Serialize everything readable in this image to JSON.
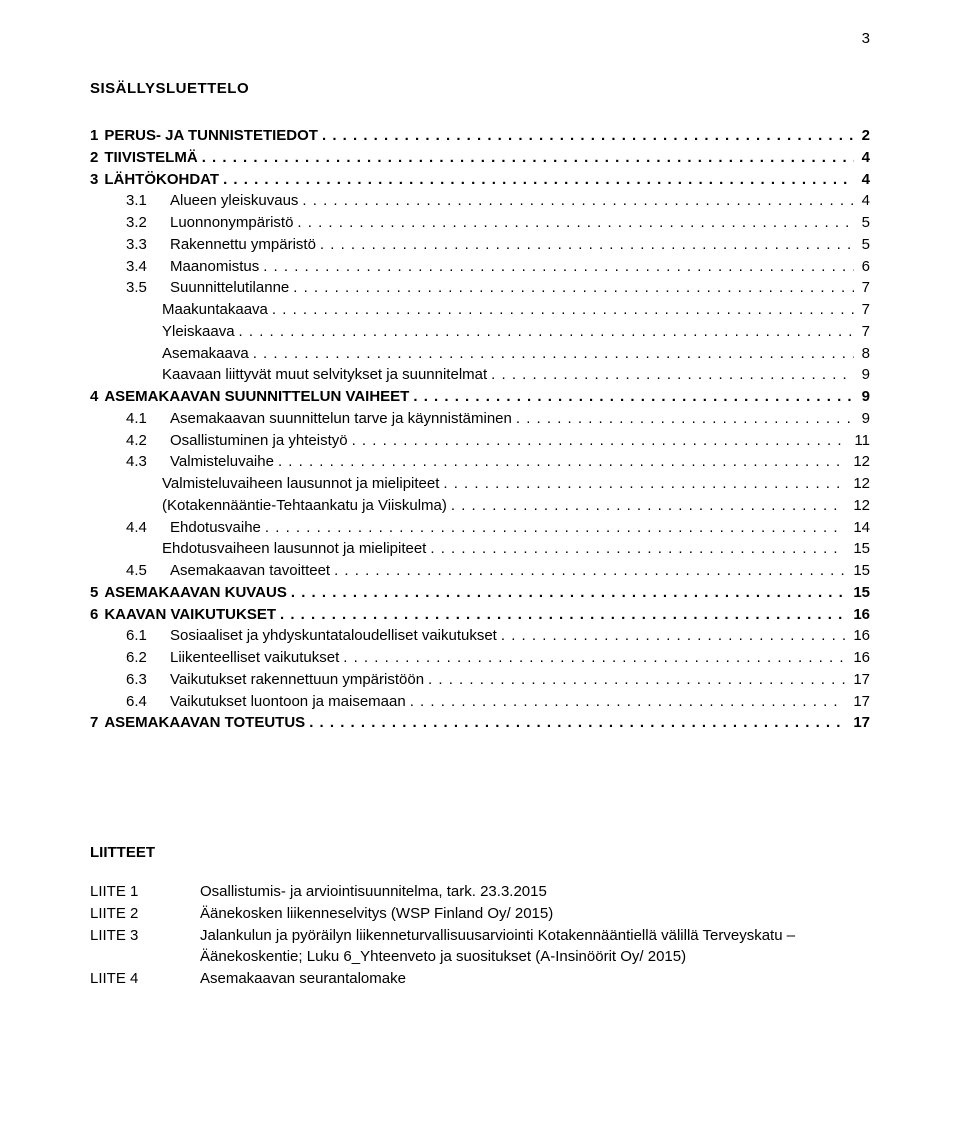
{
  "pageNumber": "3",
  "title": "SISÄLLYSLUETTELO",
  "toc": [
    {
      "level": 0,
      "num": "1",
      "label": "PERUS- JA TUNNISTETIEDOT",
      "page": "2"
    },
    {
      "level": 0,
      "num": "2",
      "label": "TIIVISTELMÄ",
      "page": "4"
    },
    {
      "level": 0,
      "num": "3",
      "label": "LÄHTÖKOHDAT",
      "page": "4"
    },
    {
      "level": 1,
      "num": "3.1",
      "label": "Alueen yleiskuvaus",
      "page": "4"
    },
    {
      "level": 1,
      "num": "3.2",
      "label": "Luonnonympäristö",
      "page": "5"
    },
    {
      "level": 1,
      "num": "3.3",
      "label": "Rakennettu ympäristö",
      "page": "5"
    },
    {
      "level": 1,
      "num": "3.4",
      "label": "Maanomistus",
      "page": "6"
    },
    {
      "level": 1,
      "num": "3.5",
      "label": "Suunnittelutilanne",
      "page": "7"
    },
    {
      "level": 2,
      "num": "",
      "label": "Maakuntakaava",
      "page": "7"
    },
    {
      "level": 2,
      "num": "",
      "label": "Yleiskaava",
      "page": "7"
    },
    {
      "level": 2,
      "num": "",
      "label": "Asemakaava",
      "page": "8"
    },
    {
      "level": 2,
      "num": "",
      "label": "Kaavaan liittyvät muut selvitykset ja suunnitelmat",
      "page": "9"
    },
    {
      "level": 0,
      "num": "4",
      "label": "ASEMAKAAVAN SUUNNITTELUN VAIHEET",
      "page": "9"
    },
    {
      "level": 1,
      "num": "4.1",
      "label": "Asemakaavan suunnittelun tarve ja käynnistäminen",
      "page": "9"
    },
    {
      "level": 1,
      "num": "4.2",
      "label": "Osallistuminen ja yhteistyö",
      "page": "11"
    },
    {
      "level": 1,
      "num": "4.3",
      "label": "Valmisteluvaihe",
      "page": "12"
    },
    {
      "level": 2,
      "num": "",
      "label": "Valmisteluvaiheen lausunnot ja mielipiteet",
      "page": "12"
    },
    {
      "level": 2,
      "num": "",
      "label": "(Kotakennääntie-Tehtaankatu ja Viiskulma)",
      "page": "12"
    },
    {
      "level": 1,
      "num": "4.4",
      "label": "Ehdotusvaihe",
      "page": "14"
    },
    {
      "level": 2,
      "num": "",
      "label": "Ehdotusvaiheen lausunnot ja mielipiteet",
      "page": "15"
    },
    {
      "level": 1,
      "num": "4.5",
      "label": "Asemakaavan tavoitteet",
      "page": "15"
    },
    {
      "level": 0,
      "num": "5",
      "label": "ASEMAKAAVAN KUVAUS",
      "page": "15"
    },
    {
      "level": 0,
      "num": "6",
      "label": "KAAVAN VAIKUTUKSET",
      "page": "16"
    },
    {
      "level": 1,
      "num": "6.1",
      "label": "Sosiaaliset ja yhdyskuntataloudelliset vaikutukset",
      "page": "16"
    },
    {
      "level": 1,
      "num": "6.2",
      "label": "Liikenteelliset vaikutukset",
      "page": "16"
    },
    {
      "level": 1,
      "num": "6.3",
      "label": "Vaikutukset rakennettuun ympäristöön",
      "page": "17"
    },
    {
      "level": 1,
      "num": "6.4",
      "label": "Vaikutukset luontoon ja maisemaan",
      "page": "17"
    },
    {
      "level": 0,
      "num": "7",
      "label": "ASEMAKAAVAN TOTEUTUS",
      "page": "17"
    }
  ],
  "appendixTitle": "LIITTEET",
  "appendix": [
    {
      "key": "LIITE 1",
      "val": "Osallistumis- ja arviointisuunnitelma, tark. 23.3.2015"
    },
    {
      "key": "LIITE 2",
      "val": "Äänekosken liikenneselvitys (WSP Finland Oy/ 2015)"
    },
    {
      "key": "LIITE 3",
      "val": "Jalankulun ja pyöräilyn liikenneturvallisuusarviointi Kotakennääntiellä välillä Terveyskatu – Äänekoskentie; Luku 6_Yhteenveto ja suositukset (A-Insinöörit Oy/ 2015)"
    },
    {
      "key": "LIITE 4",
      "val": "Asemakaavan seurantalomake"
    }
  ]
}
